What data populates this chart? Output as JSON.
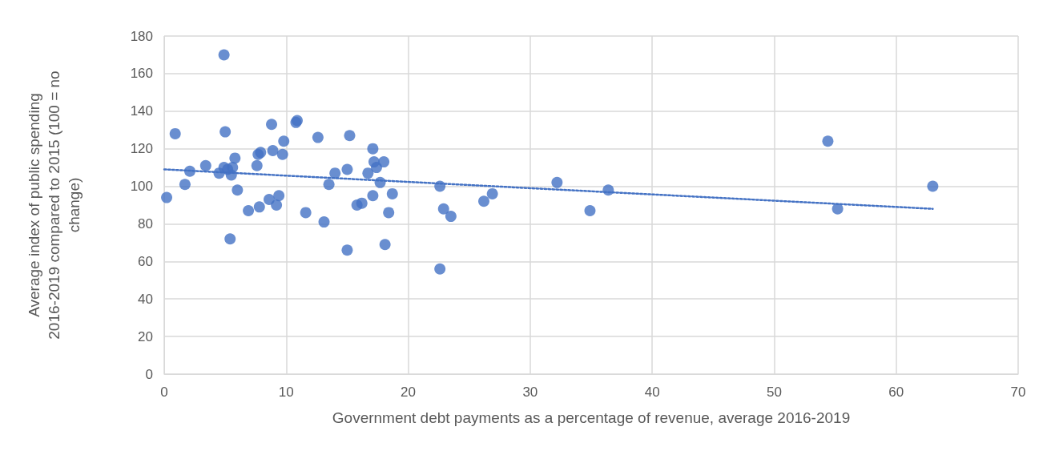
{
  "chart_data": {
    "type": "scatter",
    "xlabel": "Government debt payments as a percentage of revenue, average 2016-2019",
    "ylabel": "Average index of public spending 2016-2019 compared to 2015 (100 = no change)",
    "xlim": [
      0,
      70
    ],
    "xticks": [
      0,
      10,
      20,
      30,
      40,
      50,
      60,
      70
    ],
    "ylim": [
      0,
      180
    ],
    "yticks": [
      0,
      20,
      40,
      60,
      80,
      100,
      120,
      140,
      160,
      180
    ],
    "grid": true,
    "marker": "circle",
    "series": [
      {
        "type": "scatter",
        "color": "#4472c4",
        "x": [
          0.2,
          0.9,
          1.7,
          2.1,
          3.4,
          4.5,
          4.9,
          4.9,
          5.0,
          5.2,
          5.4,
          5.5,
          5.6,
          5.8,
          6.0,
          6.9,
          7.6,
          7.7,
          7.9,
          7.8,
          8.6,
          8.8,
          8.9,
          9.2,
          9.4,
          9.7,
          9.8,
          10.8,
          10.9,
          11.6,
          12.6,
          13.1,
          13.5,
          14.0,
          15.0,
          15.0,
          15.2,
          15.8,
          16.2,
          16.7,
          17.1,
          17.1,
          17.2,
          17.4,
          17.7,
          18.0,
          18.1,
          18.4,
          18.7,
          22.6,
          22.6,
          22.9,
          23.5,
          26.2,
          26.9,
          32.2,
          34.9,
          36.4,
          54.4,
          55.2,
          63.0
        ],
        "values": [
          94,
          128,
          101,
          108,
          111,
          107,
          170,
          110,
          129,
          109,
          72,
          106,
          110,
          115,
          98,
          87,
          111,
          117,
          118,
          89,
          93,
          133,
          119,
          90,
          95,
          117,
          124,
          134,
          135,
          86,
          126,
          81,
          101,
          107,
          109,
          66,
          127,
          90,
          91,
          107,
          120,
          95,
          113,
          110,
          102,
          113,
          69,
          86,
          96,
          100,
          56,
          88,
          84,
          92,
          96,
          102,
          87,
          98,
          124,
          88,
          100
        ]
      },
      {
        "type": "line",
        "color": "#4472c4",
        "line_style": "dotted",
        "marker": "none",
        "x": [
          0,
          63
        ],
        "values": [
          109,
          88
        ]
      }
    ]
  }
}
